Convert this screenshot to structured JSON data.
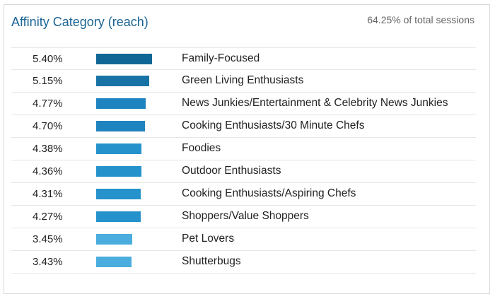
{
  "card": {
    "title": "Affinity Category (reach)",
    "subtitle": "64.25% of total sessions"
  },
  "chart_data": {
    "type": "bar",
    "orientation": "horizontal",
    "title": "Affinity Category (reach)",
    "categories": [
      "Family-Focused",
      "Green Living Enthusiasts",
      "News Junkies/Entertainment & Celebrity News Junkies",
      "Cooking Enthusiasts/30 Minute Chefs",
      "Foodies",
      "Outdoor Enthusiasts",
      "Cooking Enthusiasts/Aspiring Chefs",
      "Shoppers/Value Shoppers",
      "Pet Lovers",
      "Shutterbugs"
    ],
    "values": [
      5.4,
      5.15,
      4.77,
      4.7,
      4.38,
      4.36,
      4.31,
      4.27,
      3.45,
      3.43
    ],
    "value_labels": [
      "5.40%",
      "5.15%",
      "4.77%",
      "4.70%",
      "4.38%",
      "4.36%",
      "4.31%",
      "4.27%",
      "3.45%",
      "3.43%"
    ],
    "bar_colors": [
      "#106796",
      "#1773a6",
      "#1e84bf",
      "#1e84bf",
      "#2592cc",
      "#2592cc",
      "#2592cc",
      "#2592cc",
      "#4aaddd",
      "#4aaddd"
    ],
    "grid": false,
    "legend": "none"
  }
}
